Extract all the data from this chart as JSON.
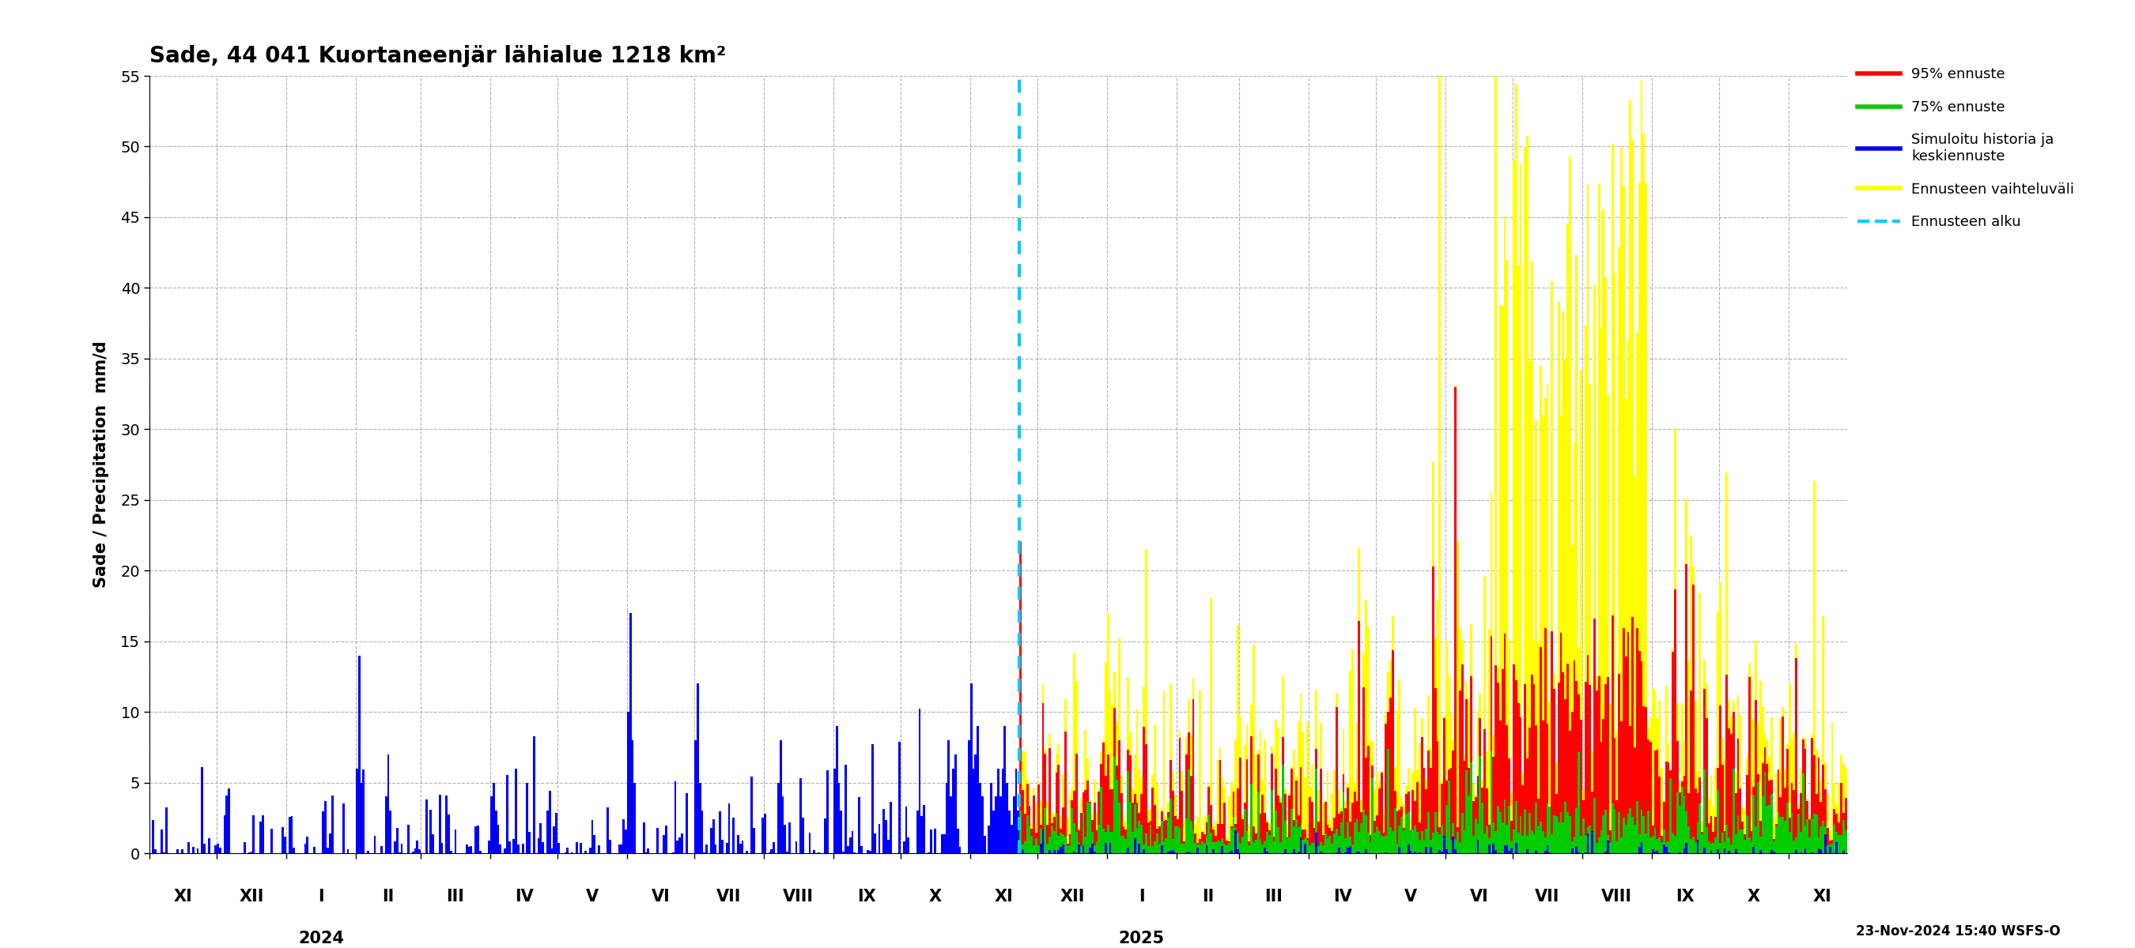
{
  "title": "Sade, 44 041 Kuortaneenjär lähialue 1218 km²",
  "ylabel": "Sade / Precipitation  mm/d",
  "ylim": [
    0,
    55
  ],
  "yticks": [
    0,
    5,
    10,
    15,
    20,
    25,
    30,
    35,
    40,
    45,
    50,
    55
  ],
  "background_color": "#ffffff",
  "grid_color": "#aaaaaa",
  "colors": {
    "history": "#0000ff",
    "p75": "#00cc00",
    "p95": "#ff0000",
    "range": "#ffff00",
    "forecast_line": "#00ccff"
  },
  "legend_entries": [
    {
      "label": "95% ennuste",
      "color": "#ff0000",
      "lw": 4,
      "ls": "-"
    },
    {
      "label": "75% ennuste",
      "color": "#00cc00",
      "lw": 4,
      "ls": "-"
    },
    {
      "label": "Simuloitu historia ja\nkeskiennuste",
      "color": "#0000ff",
      "lw": 4,
      "ls": "-"
    },
    {
      "label": "Ennusteen vaihteluväli",
      "color": "#ffff00",
      "lw": 4,
      "ls": "-"
    },
    {
      "label": "Ennusteen alku",
      "color": "#00ccff",
      "lw": 3,
      "ls": "--"
    }
  ],
  "timestamp_text": "23-Nov-2024 15:40 WSFS-O",
  "month_labels": [
    "XI",
    "XII",
    "I",
    "II",
    "III",
    "IV",
    "V",
    "VI",
    "VII",
    "VIII",
    "IX",
    "X",
    "XI",
    "XII",
    "I",
    "II",
    "III",
    "IV",
    "V",
    "VI",
    "VII",
    "VIII",
    "IX",
    "X",
    "XI"
  ],
  "month_lengths": [
    30,
    31,
    31,
    29,
    31,
    30,
    31,
    30,
    31,
    31,
    30,
    31,
    30,
    31,
    31,
    28,
    31,
    30,
    31,
    30,
    31,
    31,
    30,
    31,
    30
  ],
  "n_hist": 388,
  "n_fore": 369
}
